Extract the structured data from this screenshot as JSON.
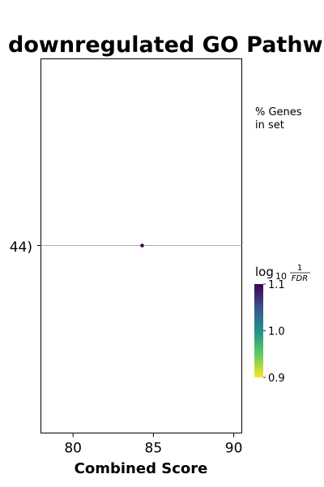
{
  "chart_data": {
    "type": "scatter",
    "title": "downregulated GO Pathw",
    "xlabel": "Combined Score",
    "ylabel": "",
    "xlim": [
      78,
      90.5
    ],
    "x_ticks": [
      "80",
      "85",
      "90"
    ],
    "y_tick_label": "44)",
    "points": [
      {
        "x": 84.3,
        "y": 0,
        "color_value": 1.1
      }
    ],
    "size_legend_label": [
      "% Genes",
      "in set"
    ],
    "colorbar": {
      "label": "log10 1/FDR",
      "label_base": "log",
      "label_sub": "10",
      "label_num": "1",
      "label_den": "FDR",
      "colormap": "viridis",
      "range": [
        0.9,
        1.1
      ],
      "ticks": [
        "1.1",
        "1.0",
        "0.9"
      ]
    },
    "grid": "horizontal line at category"
  }
}
